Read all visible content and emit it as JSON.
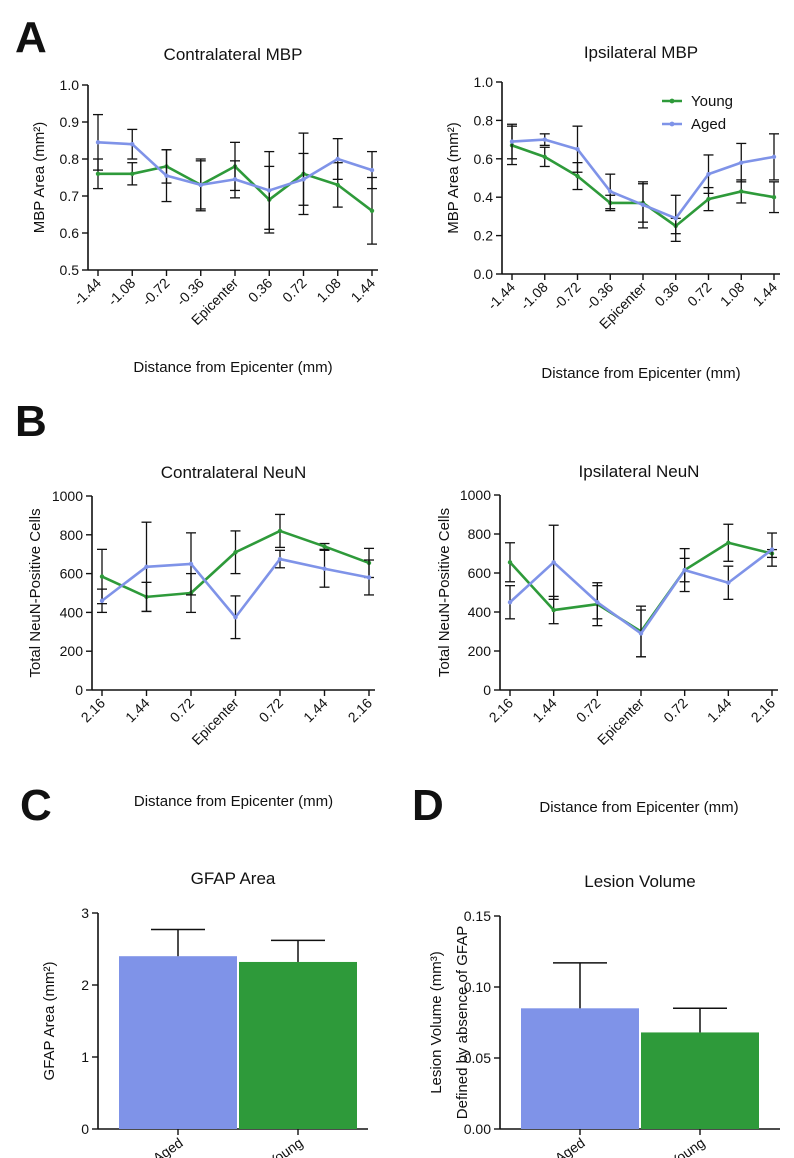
{
  "panels": [
    {
      "letter": "A",
      "x": 15,
      "y": 52
    },
    {
      "letter": "B",
      "x": 15,
      "y": 436
    },
    {
      "letter": "C",
      "x": 20,
      "y": 820
    },
    {
      "letter": "D",
      "x": 412,
      "y": 820
    }
  ],
  "legend": [
    {
      "name": "Young",
      "color": "#2e9a3a"
    },
    {
      "name": "Aged",
      "color": "#7f93e8"
    }
  ],
  "chart_data": [
    {
      "id": "contra-mbp",
      "type": "line",
      "title": "Contralateral MBP",
      "xlabel": "Distance from Epicenter (mm)",
      "ylabel": "MBP Area (mm²)",
      "categories": [
        "-1.44",
        "-1.08",
        "-0.72",
        "-0.36",
        "Epicenter",
        "0.36",
        "0.72",
        "1.08",
        "1.44"
      ],
      "ylim": [
        0.5,
        1.0
      ],
      "yticks": [
        "0.5",
        "0.6",
        "0.7",
        "0.8",
        "0.9",
        "1.0"
      ],
      "grid": false,
      "series": [
        {
          "name": "Young",
          "color": "#2e9a3a",
          "values": [
            0.76,
            0.76,
            0.78,
            0.73,
            0.78,
            0.69,
            0.76,
            0.73,
            0.66
          ],
          "errors": [
            0.04,
            0.03,
            0.045,
            0.065,
            0.065,
            0.09,
            0.11,
            0.06,
            0.09
          ]
        },
        {
          "name": "Aged",
          "color": "#7f93e8",
          "values": [
            0.845,
            0.84,
            0.755,
            0.73,
            0.745,
            0.715,
            0.745,
            0.8,
            0.77
          ],
          "errors": [
            0.075,
            0.04,
            0.07,
            0.07,
            0.05,
            0.105,
            0.07,
            0.055,
            0.05
          ]
        }
      ]
    },
    {
      "id": "ipsi-mbp",
      "type": "line",
      "title": "Ipsilateral MBP",
      "xlabel": "Distance from Epicenter (mm)",
      "ylabel": "MBP Area (mm²)",
      "categories": [
        "-1.44",
        "-1.08",
        "-0.72",
        "-0.36",
        "Epicenter",
        "0.36",
        "0.72",
        "1.08",
        "1.44"
      ],
      "ylim": [
        0.0,
        1.0
      ],
      "yticks": [
        "0.0",
        "0.2",
        "0.4",
        "0.6",
        "0.8",
        "1.0"
      ],
      "grid": false,
      "legend_position": "top-right",
      "series": [
        {
          "name": "Young",
          "color": "#2e9a3a",
          "values": [
            0.67,
            0.61,
            0.51,
            0.37,
            0.37,
            0.25,
            0.39,
            0.43,
            0.4
          ],
          "errors": [
            0.1,
            0.05,
            0.07,
            0.04,
            0.1,
            0.04,
            0.06,
            0.06,
            0.08
          ]
        },
        {
          "name": "Aged",
          "color": "#7f93e8",
          "values": [
            0.69,
            0.7,
            0.65,
            0.43,
            0.36,
            0.29,
            0.52,
            0.58,
            0.61
          ],
          "errors": [
            0.09,
            0.03,
            0.12,
            0.09,
            0.12,
            0.12,
            0.1,
            0.1,
            0.12
          ]
        }
      ]
    },
    {
      "id": "contra-neun",
      "type": "line",
      "title": "Contralateral NeuN",
      "xlabel": "Distance from Epicenter (mm)",
      "ylabel": "Total NeuN-Positive Cells",
      "categories": [
        "2.16",
        "1.44",
        "0.72",
        "Epicenter",
        "0.72",
        "1.44",
        "2.16"
      ],
      "ylim": [
        0,
        1000
      ],
      "yticks": [
        "0",
        "200",
        "400",
        "600",
        "800",
        "1000"
      ],
      "grid": false,
      "series": [
        {
          "name": "Young",
          "color": "#2e9a3a",
          "values": [
            585,
            480,
            500,
            710,
            820,
            740,
            655
          ],
          "errors": [
            140,
            75,
            100,
            110,
            85,
            15,
            75
          ]
        },
        {
          "name": "Aged",
          "color": "#7f93e8",
          "values": [
            460,
            635,
            650,
            375,
            675,
            625,
            580
          ],
          "errors": [
            60,
            230,
            160,
            110,
            45,
            95,
            90
          ]
        }
      ]
    },
    {
      "id": "ipsi-neun",
      "type": "line",
      "title": "Ipsilateral NeuN",
      "xlabel": "Distance from Epicenter (mm)",
      "ylabel": "Total NeuN-Positive Cells",
      "categories": [
        "2.16",
        "1.44",
        "0.72",
        "Epicenter",
        "0.72",
        "1.44",
        "2.16"
      ],
      "ylim": [
        0,
        1000
      ],
      "yticks": [
        "0",
        "200",
        "400",
        "600",
        "800",
        "1000"
      ],
      "grid": false,
      "series": [
        {
          "name": "Young",
          "color": "#2e9a3a",
          "values": [
            655,
            410,
            440,
            300,
            615,
            755,
            700
          ],
          "errors": [
            100,
            70,
            110,
            130,
            110,
            95,
            20
          ]
        },
        {
          "name": "Aged",
          "color": "#7f93e8",
          "values": [
            450,
            655,
            450,
            290,
            615,
            550,
            720
          ],
          "errors": [
            85,
            190,
            85,
            120,
            60,
            85,
            85
          ]
        }
      ]
    },
    {
      "id": "gfap-area",
      "type": "bar",
      "title": "GFAP Area",
      "xlabel": "",
      "ylabel": "GFAP Area (mm²)",
      "categories": [
        "Aged",
        "Young"
      ],
      "values": [
        2.4,
        2.32
      ],
      "errors": [
        0.37,
        0.3
      ],
      "colors": [
        "#7f93e8",
        "#2e9a3a"
      ],
      "ylim": [
        0,
        3
      ],
      "yticks": [
        "0",
        "1",
        "2",
        "3"
      ],
      "grid": false
    },
    {
      "id": "lesion-volume",
      "type": "bar",
      "title": "Lesion Volume",
      "xlabel": "",
      "ylabel": "Lesion Volume (mm³)",
      "ylabel2": "Defined by absence of GFAP",
      "categories": [
        "Aged",
        "Young"
      ],
      "values": [
        0.085,
        0.068
      ],
      "errors": [
        0.032,
        0.017
      ],
      "colors": [
        "#7f93e8",
        "#2e9a3a"
      ],
      "ylim": [
        0,
        0.15
      ],
      "yticks": [
        "0.00",
        "0.05",
        "0.10",
        "0.15"
      ],
      "grid": false
    }
  ]
}
